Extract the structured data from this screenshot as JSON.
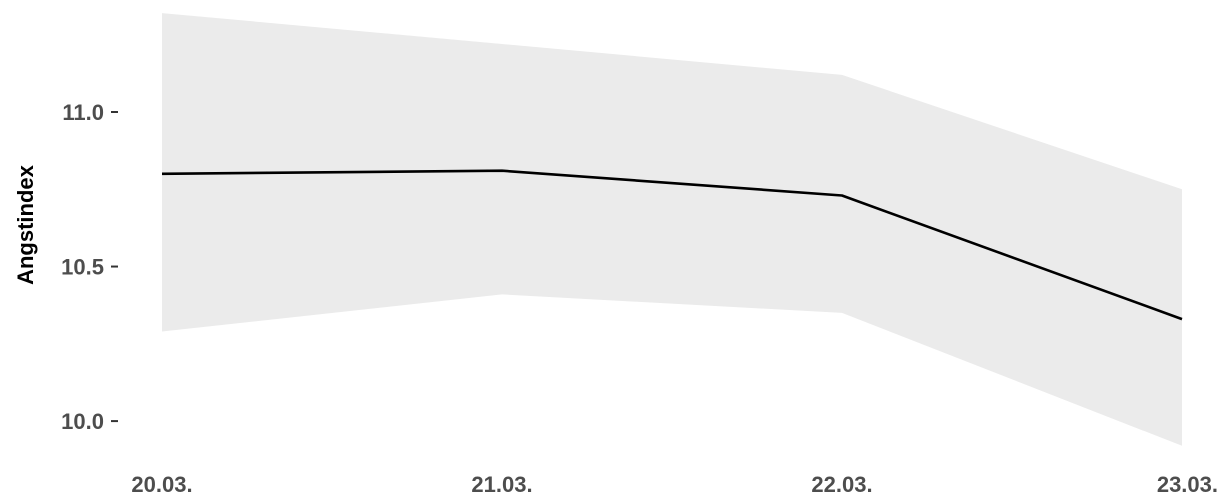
{
  "chart_data": {
    "type": "line",
    "title": "",
    "xlabel": "",
    "ylabel": "Angstindex",
    "x": [
      "20.03.",
      "21.03.",
      "22.03.",
      "23.03."
    ],
    "series": [
      {
        "values": [
          10.8,
          10.81,
          10.73,
          10.33
        ],
        "lower": [
          10.29,
          10.41,
          10.35,
          9.92
        ],
        "upper": [
          11.32,
          11.22,
          11.12,
          10.75
        ]
      }
    ],
    "y_ticks": [
      "10.0",
      "10.5",
      "11.0"
    ],
    "ylim": [
      9.9,
      11.33
    ],
    "grid": false,
    "legend": "none",
    "colors": {
      "line": "#000000",
      "band": "#ebebeb",
      "tick_text": "#4d4d4d"
    }
  }
}
